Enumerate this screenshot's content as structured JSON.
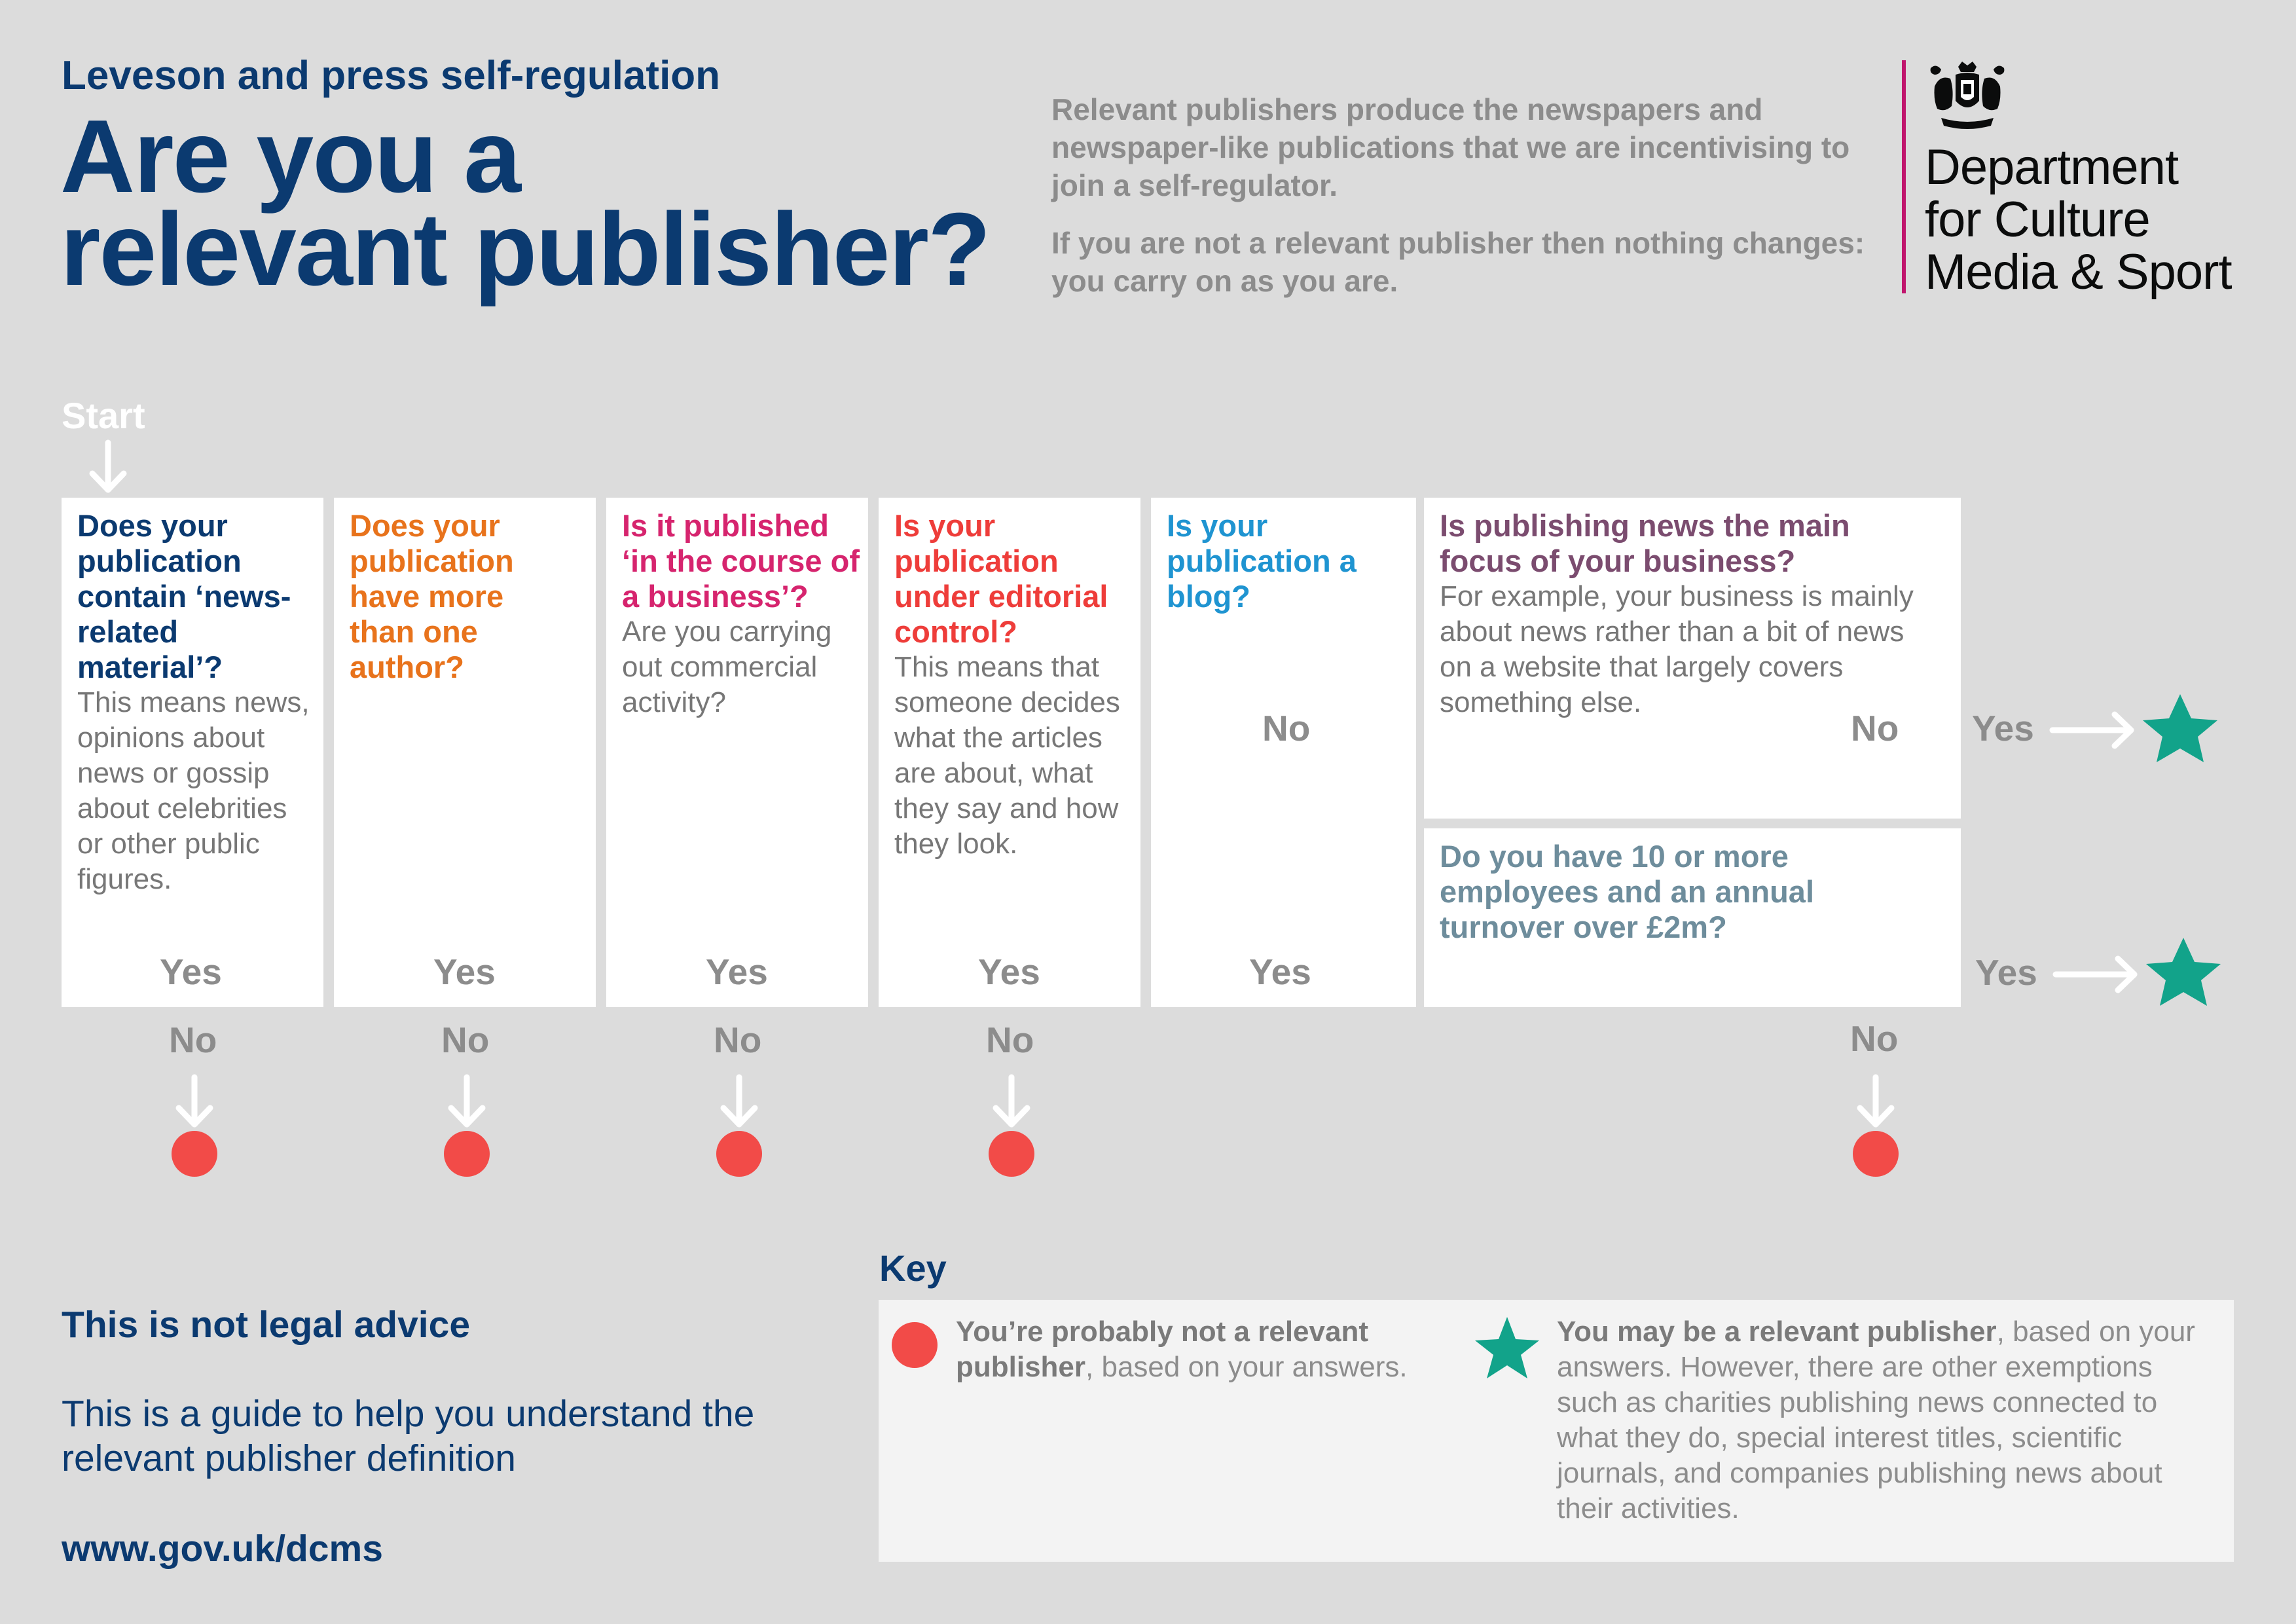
{
  "header": {
    "kicker": "Leveson and press self-regulation",
    "title_line1": "Are you a",
    "title_line2": "relevant publisher?",
    "intro_p1": "Relevant publishers produce the newspapers and newspaper-like publications that we are incentivising to join a self-regulator.",
    "intro_p2": "If you are not a relevant publisher then nothing changes: you carry on as you are."
  },
  "logo": {
    "line1": "Department",
    "line2": "for Culture",
    "line3": "Media & Sport",
    "icon": "royal-crest-icon",
    "bar_color": "#c0156d"
  },
  "flow": {
    "start_label": "Start",
    "yes_label": "Yes",
    "no_label": "No",
    "questions": [
      {
        "question": "Does your publication contain ‘news-related material’?",
        "description": "This means news, opinions about news or gossip about celebrities or other public figures.",
        "color": "#0b3a70"
      },
      {
        "question": "Does your publication have more than one author?",
        "description": "",
        "color": "#e8731c"
      },
      {
        "question": "Is it published ‘in the course of a business’?",
        "description": "Are you carrying out commercial activity?",
        "color": "#d6246e"
      },
      {
        "question": "Is your publication under editorial control?",
        "description": "This means that someone decides what the articles are about, what they say and how they look.",
        "color": "#ee3d3a"
      },
      {
        "question": "Is your publication a blog?",
        "description": "",
        "color": "#1f94d1"
      },
      {
        "question": "Is publishing news the main focus of your business?",
        "description": "For example, your business is mainly about news rather than a bit of news on a website that largely covers something else.",
        "color": "#7b4c6f"
      },
      {
        "question": "Do you have 10 or more employees and an annual turnover over £2m?",
        "description": "",
        "color": "#6e8d9c"
      }
    ]
  },
  "colors": {
    "not_relevant_dot": "#f24b48",
    "relevant_star": "#12a38a",
    "arrow": "#ffffff",
    "background": "#dcdcdc"
  },
  "footer": {
    "heading": "This is not legal advice",
    "text": "This is a guide to help you understand the relevant publisher definition",
    "url": "www.gov.uk/dcms"
  },
  "key": {
    "title": "Key",
    "not_relevant_bold": "You’re probably not a relevant publisher",
    "not_relevant_rest": ", based on your answers.",
    "relevant_bold": "You may be a relevant publisher",
    "relevant_rest": ", based on your answers. However, there are other exemptions such as charities publishing news connected to what they do, special interest titles, scientific journals, and companies publishing news about their activities."
  }
}
